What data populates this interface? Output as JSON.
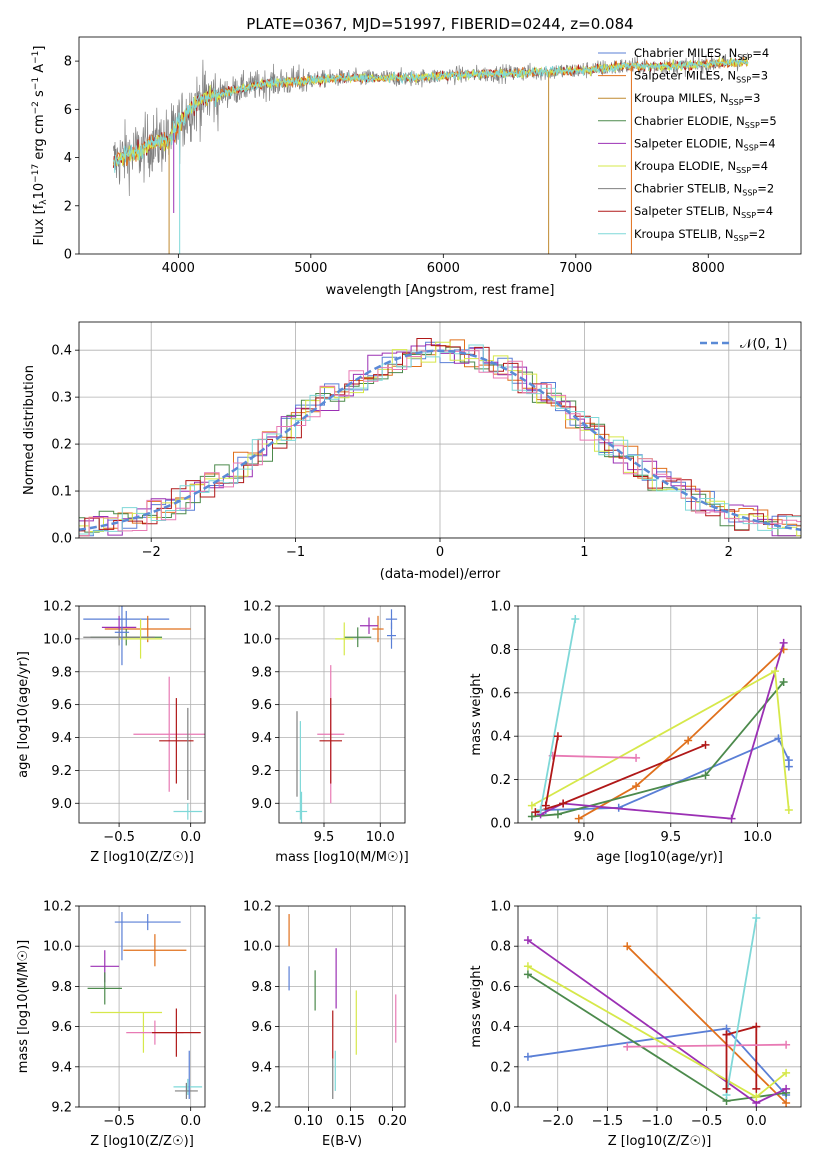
{
  "figure": {
    "title": "PLATE=0367, MJD=51997, FIBERID=0244, z=0.084"
  },
  "colors": {
    "chabrier_miles": "#5a7fd6",
    "salpeter_miles": "#e0701c",
    "kroupa_miles": "#c08a30",
    "chabrier_elodie": "#4c8a4c",
    "salpeter_elodie": "#9b30b4",
    "kroupa_elodie": "#d6e84a",
    "chabrier_stelib": "#808080",
    "salpeter_stelib": "#b01818",
    "kroupa_stelib": "#7fd8d8",
    "pink": "#e87ab4",
    "normal": "#5a8ad6"
  },
  "chart_data": [
    {
      "id": "spectrum",
      "type": "line",
      "xlabel": "wavelength [Angstrom, rest frame]",
      "ylabel": "Flux [f",
      "xlim": [
        3250,
        8700
      ],
      "ylim": [
        0,
        9
      ],
      "xticks": [
        4000,
        5000,
        6000,
        7000,
        8000
      ],
      "yticks": [
        0,
        2,
        4,
        6,
        8
      ],
      "legend": {
        "position": "right",
        "entries": [
          {
            "base": "Chabrier MILES, N",
            "sub": "SSP",
            "tail": "=4",
            "color": "chabrier_miles"
          },
          {
            "base": "Salpeter MILES, N",
            "sub": "SSP",
            "tail": "=3",
            "color": "salpeter_miles"
          },
          {
            "base": "Kroupa MILES, N",
            "sub": "SSP",
            "tail": "=3",
            "color": "kroupa_miles"
          },
          {
            "base": "Chabrier ELODIE, N",
            "sub": "SSP",
            "tail": "=5",
            "color": "chabrier_elodie"
          },
          {
            "base": "Salpeter ELODIE, N",
            "sub": "SSP",
            "tail": "=4",
            "color": "salpeter_elodie"
          },
          {
            "base": "Kroupa ELODIE, N",
            "sub": "SSP",
            "tail": "=4",
            "color": "kroupa_elodie"
          },
          {
            "base": "Chabrier STELIB, N",
            "sub": "SSP",
            "tail": "=2",
            "color": "chabrier_stelib"
          },
          {
            "base": "Salpeter STELIB, N",
            "sub": "SSP",
            "tail": "=4",
            "color": "salpeter_stelib"
          },
          {
            "base": "Kroupa STELIB, N",
            "sub": "SSP",
            "tail": "=2",
            "color": "kroupa_stelib"
          }
        ]
      },
      "continuum": [
        [
          3510,
          3.8
        ],
        [
          3600,
          4.1
        ],
        [
          3700,
          4.2
        ],
        [
          3800,
          4.6
        ],
        [
          3900,
          4.7
        ],
        [
          3950,
          4.9
        ],
        [
          4000,
          5.3
        ],
        [
          4100,
          6.1
        ],
        [
          4200,
          6.5
        ],
        [
          4300,
          6.6
        ],
        [
          4500,
          6.9
        ],
        [
          4700,
          7.1
        ],
        [
          5000,
          7.2
        ],
        [
          5200,
          7.3
        ],
        [
          5500,
          7.3
        ],
        [
          5800,
          7.3
        ],
        [
          6000,
          7.4
        ],
        [
          6500,
          7.5
        ],
        [
          7000,
          7.6
        ],
        [
          7400,
          7.8
        ],
        [
          7800,
          7.8
        ],
        [
          8300,
          8.0
        ]
      ],
      "spikes": [
        {
          "x": 3930,
          "y": 0,
          "color": "kroupa_miles"
        },
        {
          "x": 3965,
          "y": 1.7,
          "color": "salpeter_elodie"
        },
        {
          "x": 4010,
          "y": 0,
          "color": "kroupa_stelib"
        },
        {
          "x": 6795,
          "y": 0,
          "color": "kroupa_miles"
        },
        {
          "x": 7420,
          "y": 0,
          "color": "salpeter_miles"
        }
      ]
    },
    {
      "id": "residuals",
      "type": "histogram",
      "xlabel": "(data-model)/error",
      "ylabel": "Normed distribution",
      "xlim": [
        -2.5,
        2.5
      ],
      "ylim": [
        0,
        0.46
      ],
      "xticks": [
        -2,
        -1,
        0,
        1,
        2
      ],
      "yticks": [
        0.0,
        0.1,
        0.2,
        0.3,
        0.4
      ],
      "grid": true,
      "bin_width": 0.1,
      "series_colors": [
        "chabrier_miles",
        "salpeter_miles",
        "chabrier_elodie",
        "salpeter_elodie",
        "kroupa_elodie",
        "salpeter_stelib",
        "kroupa_stelib",
        "pink"
      ],
      "legend": {
        "position": "top-right",
        "label": "𝒩(0, 1)",
        "color": "normal"
      }
    },
    {
      "id": "age_vs_Z",
      "type": "errorbar",
      "xlabel": "Z [log10(Z/Z☉)]",
      "ylabel": "age  [log10(age/yr)]",
      "xlim": [
        -0.78,
        0.1
      ],
      "ylim": [
        8.88,
        10.2
      ],
      "xticks": [
        -0.5,
        0.0
      ],
      "yticks": [
        9.0,
        9.2,
        9.4,
        9.6,
        9.8,
        10.0,
        10.2
      ],
      "grid": true,
      "points": [
        {
          "x": -0.45,
          "y": 10.12,
          "xerr": 0.3,
          "yerr": 0.05,
          "color": "chabrier_miles"
        },
        {
          "x": -0.3,
          "y": 10.06,
          "xerr": 0.3,
          "yerr": 0.08,
          "color": "salpeter_miles"
        },
        {
          "x": -0.5,
          "y": 10.07,
          "xerr": 0.12,
          "yerr": 0.07,
          "color": "salpeter_elodie"
        },
        {
          "x": -0.45,
          "y": 10.01,
          "xerr": 0.25,
          "yerr": 0.05,
          "color": "chabrier_elodie"
        },
        {
          "x": -0.5,
          "y": 10.01,
          "xerr": 0.25,
          "yerr": 0.05,
          "color": "chabrier_stelib"
        },
        {
          "x": -0.35,
          "y": 10.0,
          "xerr": 0.15,
          "yerr": 0.12,
          "color": "kroupa_elodie"
        },
        {
          "x": -0.48,
          "y": 10.04,
          "xerr": 0.05,
          "yerr": 0.2,
          "color": "chabrier_miles"
        },
        {
          "x": -0.15,
          "y": 9.42,
          "xerr": 0.25,
          "yerr": 0.35,
          "color": "pink"
        },
        {
          "x": -0.1,
          "y": 9.38,
          "xerr": 0.12,
          "yerr": 0.26,
          "color": "salpeter_stelib"
        },
        {
          "x": -0.02,
          "y": 8.95,
          "xerr": 0.1,
          "yerr": 0.05,
          "color": "kroupa_stelib"
        },
        {
          "x": -0.02,
          "y": 9.3,
          "xerr": 0.0,
          "yerr": 0.28,
          "color": "chabrier_stelib"
        }
      ]
    },
    {
      "id": "age_vs_mass",
      "type": "errorbar",
      "xlabel": "mass [log10(M/M☉)]",
      "ylabel": "",
      "xlim": [
        9.1,
        10.22
      ],
      "ylim": [
        8.88,
        10.2
      ],
      "xticks": [
        9.5,
        10.0
      ],
      "yticks": [
        9.0,
        9.2,
        9.4,
        9.6,
        9.8,
        10.0,
        10.2
      ],
      "grid": true,
      "points": [
        {
          "x": 10.1,
          "y": 10.12,
          "xerr": 0.05,
          "yerr": 0.06,
          "color": "chabrier_miles"
        },
        {
          "x": 9.98,
          "y": 10.06,
          "xerr": 0.05,
          "yerr": 0.08,
          "color": "salpeter_miles"
        },
        {
          "x": 9.9,
          "y": 10.08,
          "xerr": 0.08,
          "yerr": 0.05,
          "color": "salpeter_elodie"
        },
        {
          "x": 9.8,
          "y": 10.01,
          "xerr": 0.12,
          "yerr": 0.06,
          "color": "chabrier_elodie"
        },
        {
          "x": 9.68,
          "y": 10.0,
          "xerr": 0.08,
          "yerr": 0.1,
          "color": "kroupa_elodie"
        },
        {
          "x": 10.1,
          "y": 10.02,
          "xerr": 0.04,
          "yerr": 0.08,
          "color": "chabrier_miles"
        },
        {
          "x": 9.56,
          "y": 9.42,
          "xerr": 0.12,
          "yerr": 0.42,
          "color": "pink"
        },
        {
          "x": 9.56,
          "y": 9.38,
          "xerr": 0.1,
          "yerr": 0.26,
          "color": "salpeter_stelib"
        },
        {
          "x": 9.3,
          "y": 8.95,
          "xerr": 0.05,
          "yerr": 0.12,
          "color": "kroupa_stelib"
        },
        {
          "x": 9.26,
          "y": 9.3,
          "xerr": 0.0,
          "yerr": 0.26,
          "color": "chabrier_stelib"
        },
        {
          "x": 9.29,
          "y": 9.2,
          "xerr": 0.0,
          "yerr": 0.3,
          "color": "kroupa_stelib"
        }
      ]
    },
    {
      "id": "weight_vs_age",
      "type": "line",
      "xlabel": "age  [log10(age/yr)]",
      "ylabel": "mass weight",
      "xlim": [
        8.62,
        10.25
      ],
      "ylim": [
        0,
        1.0
      ],
      "xticks": [
        9.0,
        9.5,
        10.0
      ],
      "yticks": [
        0.0,
        0.2,
        0.4,
        0.6,
        0.8,
        1.0
      ],
      "grid": true,
      "series": [
        {
          "color": "chabrier_miles",
          "x": [
            8.78,
            9.2,
            10.12,
            10.18,
            10.18
          ],
          "y": [
            0.06,
            0.07,
            0.39,
            0.29,
            0.26
          ]
        },
        {
          "color": "salpeter_miles",
          "x": [
            8.97,
            9.3,
            9.6,
            10.15
          ],
          "y": [
            0.02,
            0.17,
            0.38,
            0.8
          ]
        },
        {
          "color": "chabrier_elodie",
          "x": [
            8.7,
            8.85,
            9.7,
            10.15
          ],
          "y": [
            0.03,
            0.04,
            0.22,
            0.65
          ]
        },
        {
          "color": "salpeter_elodie",
          "x": [
            8.75,
            8.88,
            9.85,
            10.15
          ],
          "y": [
            0.04,
            0.09,
            0.02,
            0.83
          ]
        },
        {
          "color": "kroupa_elodie",
          "x": [
            8.7,
            10.1,
            10.18
          ],
          "y": [
            0.08,
            0.7,
            0.06
          ]
        },
        {
          "color": "salpeter_stelib",
          "x": [
            8.72,
            8.88,
            9.7
          ],
          "y": [
            0.05,
            0.09,
            0.36
          ]
        },
        {
          "color": "pink",
          "x": [
            8.82,
            9.3
          ],
          "y": [
            0.31,
            0.3
          ]
        },
        {
          "color": "kroupa_stelib",
          "x": [
            8.75,
            8.95
          ],
          "y": [
            0.06,
            0.94
          ]
        },
        {
          "color": "salpeter_stelib",
          "x": [
            8.78,
            8.85
          ],
          "y": [
            0.08,
            0.4
          ]
        }
      ]
    },
    {
      "id": "mass_vs_Z",
      "type": "errorbar",
      "xlabel": "Z [log10(Z/Z☉)]",
      "ylabel": "mass [log10(M/M☉)]",
      "xlim": [
        -0.78,
        0.1
      ],
      "ylim": [
        9.2,
        10.2
      ],
      "xticks": [
        -0.5,
        0.0
      ],
      "yticks": [
        9.2,
        9.4,
        9.6,
        9.8,
        10.0,
        10.2
      ],
      "grid": true,
      "points": [
        {
          "x": -0.3,
          "y": 10.12,
          "xerr": 0.23,
          "yerr": 0.04,
          "color": "chabrier_miles"
        },
        {
          "x": -0.48,
          "y": 10.05,
          "xerr": 0.0,
          "yerr": 0.12,
          "color": "chabrier_miles"
        },
        {
          "x": -0.25,
          "y": 9.98,
          "xerr": 0.22,
          "yerr": 0.08,
          "color": "salpeter_miles"
        },
        {
          "x": -0.6,
          "y": 9.9,
          "xerr": 0.1,
          "yerr": 0.08,
          "color": "salpeter_elodie"
        },
        {
          "x": -0.6,
          "y": 9.79,
          "xerr": 0.12,
          "yerr": 0.08,
          "color": "chabrier_elodie"
        },
        {
          "x": -0.45,
          "y": 9.67,
          "xerr": 0.25,
          "yerr": 0.0,
          "color": "kroupa_elodie"
        },
        {
          "x": -0.33,
          "y": 9.57,
          "xerr": 0.0,
          "yerr": 0.1,
          "color": "kroupa_elodie"
        },
        {
          "x": -0.25,
          "y": 9.57,
          "xerr": 0.2,
          "yerr": 0.06,
          "color": "pink"
        },
        {
          "x": -0.1,
          "y": 9.57,
          "xerr": 0.17,
          "yerr": 0.12,
          "color": "salpeter_stelib"
        },
        {
          "x": -0.02,
          "y": 9.3,
          "xerr": 0.1,
          "yerr": 0.04,
          "color": "kroupa_stelib"
        },
        {
          "x": -0.03,
          "y": 9.28,
          "xerr": 0.08,
          "yerr": 0.04,
          "color": "chabrier_stelib"
        },
        {
          "x": -0.01,
          "y": 9.36,
          "xerr": 0.0,
          "yerr": 0.12,
          "color": "chabrier_miles"
        }
      ]
    },
    {
      "id": "mass_vs_ebv",
      "type": "errorbar",
      "xlabel": "E(B-V)",
      "ylabel": "",
      "xlim": [
        0.065,
        0.215
      ],
      "ylim": [
        9.2,
        10.2
      ],
      "xticks": [
        0.1,
        0.15,
        0.2
      ],
      "xticklabels": [
        "0.10",
        "0.15",
        "0.20"
      ],
      "yticks": [
        9.2,
        9.4,
        9.6,
        9.8,
        10.0,
        10.2
      ],
      "grid": true,
      "points": [
        {
          "x": 0.077,
          "y": 10.08,
          "xerr": 0.0,
          "yerr": 0.08,
          "color": "salpeter_miles"
        },
        {
          "x": 0.077,
          "y": 9.84,
          "xerr": 0.0,
          "yerr": 0.06,
          "color": "chabrier_miles"
        },
        {
          "x": 0.108,
          "y": 9.78,
          "xerr": 0.0,
          "yerr": 0.1,
          "color": "chabrier_elodie"
        },
        {
          "x": 0.133,
          "y": 9.84,
          "xerr": 0.0,
          "yerr": 0.15,
          "color": "salpeter_elodie"
        },
        {
          "x": 0.129,
          "y": 9.56,
          "xerr": 0.0,
          "yerr": 0.12,
          "color": "salpeter_stelib"
        },
        {
          "x": 0.129,
          "y": 9.34,
          "xerr": 0.0,
          "yerr": 0.1,
          "color": "chabrier_stelib"
        },
        {
          "x": 0.132,
          "y": 9.38,
          "xerr": 0.0,
          "yerr": 0.1,
          "color": "kroupa_stelib"
        },
        {
          "x": 0.157,
          "y": 9.62,
          "xerr": 0.0,
          "yerr": 0.16,
          "color": "kroupa_elodie"
        },
        {
          "x": 0.204,
          "y": 9.64,
          "xerr": 0.0,
          "yerr": 0.12,
          "color": "pink"
        },
        {
          "x": 0.199,
          "y": 9.4,
          "xerr": 0.0,
          "yerr": 0.0,
          "color": "chabrier_stelib"
        }
      ]
    },
    {
      "id": "weight_vs_Z",
      "type": "line",
      "xlabel": "Z [log10(Z/Z☉)]",
      "ylabel": "mass weight",
      "xlim": [
        -2.4,
        0.45
      ],
      "ylim": [
        0,
        1.0
      ],
      "xticks": [
        -2.0,
        -1.5,
        -1.0,
        -0.5,
        0.0
      ],
      "yticks": [
        0.0,
        0.2,
        0.4,
        0.6,
        0.8,
        1.0
      ],
      "grid": true,
      "series": [
        {
          "color": "chabrier_miles",
          "x": [
            -2.3,
            -0.3,
            0.3
          ],
          "y": [
            0.25,
            0.39,
            0.06
          ]
        },
        {
          "color": "salpeter_miles",
          "x": [
            -1.3,
            0.3
          ],
          "y": [
            0.8,
            0.02
          ]
        },
        {
          "color": "chabrier_elodie",
          "x": [
            -2.3,
            -0.3,
            0.3
          ],
          "y": [
            0.66,
            0.03,
            0.07
          ]
        },
        {
          "color": "salpeter_elodie",
          "x": [
            -2.3,
            0.0,
            0.3
          ],
          "y": [
            0.83,
            0.02,
            0.09
          ]
        },
        {
          "color": "kroupa_elodie",
          "x": [
            -2.3,
            0.0,
            0.3
          ],
          "y": [
            0.7,
            0.05,
            0.17
          ]
        },
        {
          "color": "salpeter_stelib",
          "x": [
            -0.3,
            0.0,
            0.0
          ],
          "y": [
            0.36,
            0.4,
            0.09
          ]
        },
        {
          "color": "pink",
          "x": [
            -1.3,
            0.3
          ],
          "y": [
            0.3,
            0.31
          ]
        },
        {
          "color": "kroupa_stelib",
          "x": [
            -0.3,
            0.0
          ],
          "y": [
            0.06,
            0.94
          ]
        },
        {
          "color": "salpeter_stelib",
          "x": [
            -0.3,
            -0.3
          ],
          "y": [
            0.09,
            0.36
          ]
        }
      ]
    }
  ]
}
